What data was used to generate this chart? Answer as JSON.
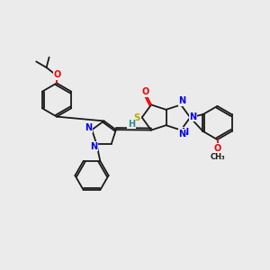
{
  "background_color": "#EBEBEB",
  "figsize": [
    3.0,
    3.0
  ],
  "dpi": 100,
  "bond_color": "#1a1a1a",
  "bond_lw": 1.3,
  "N_color": "#0000EE",
  "O_color": "#EE0000",
  "S_color": "#BBAA00",
  "H_color": "#2E8B8B",
  "C_color": "#1a1a1a",
  "xlim": [
    0,
    10
  ],
  "ylim": [
    0,
    10
  ],
  "hex_r": 0.62,
  "pent_r": 0.5
}
